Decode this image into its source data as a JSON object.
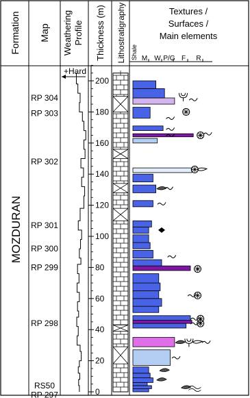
{
  "headers": {
    "formation": "Formation",
    "map": "Map",
    "weathering_line1": "Weathering",
    "weathering_line2": "Profile",
    "thickness": "Thickness (m)",
    "litho": "Lithostratigraphy",
    "textures_line1": "Textures /",
    "textures_line2": "Surfaces /",
    "textures_line3": "Main elements",
    "grain_scale": [
      "Shale",
      "M",
      "W",
      "P/G",
      "F",
      "R"
    ]
  },
  "formation_name": "MOZDURAN",
  "hard_label": "+Hard",
  "thickness_scale": {
    "min": 0,
    "max": 210,
    "ticks": [
      0,
      20,
      40,
      60,
      80,
      100,
      120,
      140,
      160,
      180,
      200
    ]
  },
  "map_labels": [
    {
      "label": "RP 304",
      "level": 189
    },
    {
      "label": "RP 303",
      "level": 179
    },
    {
      "label": "RP 302",
      "level": 148
    },
    {
      "label": "RP 301",
      "level": 107
    },
    {
      "label": "RP 300",
      "level": 92
    },
    {
      "label": "RP 299",
      "level": 80
    },
    {
      "label": "RP 298",
      "level": 44
    },
    {
      "label": "RS50",
      "level": 4
    },
    {
      "label": "RP 297",
      "level": -2
    }
  ],
  "colors": {
    "blue": "#4863e6",
    "light_blue": "#b4cdf2",
    "pale_blue": "#e2ecfb",
    "lilac": "#d4b4ec",
    "purple": "#7c18a4",
    "magenta": "#e06ee8"
  },
  "beds": [
    {
      "from": 0,
      "to": 2,
      "grain": 1.1,
      "color": "blue"
    },
    {
      "from": 2,
      "to": 4,
      "grain": 1.3,
      "color": "blue"
    },
    {
      "from": 4,
      "to": 6,
      "grain": 1.0,
      "color": "blue"
    },
    {
      "from": 6,
      "to": 9,
      "grain": 1.4,
      "color": "blue"
    },
    {
      "from": 9,
      "to": 12,
      "grain": 1.2,
      "color": "blue"
    },
    {
      "from": 12,
      "to": 16,
      "grain": 1.1,
      "color": "blue"
    },
    {
      "from": 17,
      "to": 27,
      "grain": 2.6,
      "color": "light_blue"
    },
    {
      "from": 29,
      "to": 35,
      "grain": 2.9,
      "color": "magenta"
    },
    {
      "from": 41,
      "to": 44,
      "grain": 3.7,
      "color": "blue"
    },
    {
      "from": 44,
      "to": 46,
      "grain": 4.1,
      "color": "purple"
    },
    {
      "from": 46,
      "to": 49,
      "grain": 4.0,
      "color": "blue"
    },
    {
      "from": 51,
      "to": 55,
      "grain": 1.8,
      "color": "blue"
    },
    {
      "from": 55,
      "to": 60,
      "grain": 2.0,
      "color": "blue"
    },
    {
      "from": 60,
      "to": 65,
      "grain": 1.8,
      "color": "blue"
    },
    {
      "from": 65,
      "to": 70,
      "grain": 1.9,
      "color": "blue"
    },
    {
      "from": 70,
      "to": 76,
      "grain": 1.8,
      "color": "blue"
    },
    {
      "from": 78,
      "to": 81,
      "grain": 4.0,
      "color": "purple"
    },
    {
      "from": 81,
      "to": 85,
      "grain": 2.0,
      "color": "blue"
    },
    {
      "from": 86,
      "to": 91,
      "grain": 1.4,
      "color": "blue"
    },
    {
      "from": 92,
      "to": 96,
      "grain": 1.2,
      "color": "blue"
    },
    {
      "from": 96,
      "to": 101,
      "grain": 1.1,
      "color": "blue"
    },
    {
      "from": 102,
      "to": 106,
      "grain": 1.1,
      "color": "blue"
    },
    {
      "from": 106,
      "to": 110,
      "grain": 1.3,
      "color": "blue"
    },
    {
      "from": 119,
      "to": 123,
      "grain": 1.4,
      "color": "blue"
    },
    {
      "from": 128,
      "to": 133,
      "grain": 1.6,
      "color": "blue"
    },
    {
      "from": 135,
      "to": 140,
      "grain": 1.4,
      "color": "blue"
    },
    {
      "from": 141,
      "to": 144,
      "grain": 4.1,
      "color": "pale_blue"
    },
    {
      "from": 160,
      "to": 163,
      "grain": 1.7,
      "color": "light_blue"
    },
    {
      "from": 164,
      "to": 166,
      "grain": 4.2,
      "color": "purple"
    },
    {
      "from": 168,
      "to": 171,
      "grain": 2.1,
      "color": "blue"
    },
    {
      "from": 176,
      "to": 183,
      "grain": 1.2,
      "color": "blue"
    },
    {
      "from": 185,
      "to": 189,
      "grain": 2.9,
      "color": "lilac"
    },
    {
      "from": 189,
      "to": 195,
      "grain": 2.2,
      "color": "blue"
    },
    {
      "from": 195,
      "to": 200,
      "grain": 1.6,
      "color": "blue"
    }
  ],
  "litho_cross_intervals": [
    [
      18,
      29
    ],
    [
      39,
      43
    ],
    [
      110,
      118
    ],
    [
      128,
      134
    ],
    [
      150,
      156
    ],
    [
      180,
      190
    ]
  ],
  "weathering_profile": [
    {
      "level": 0,
      "hardness": 1.8
    },
    {
      "level": 4,
      "hardness": 1.6
    },
    {
      "level": 8,
      "hardness": 1.9
    },
    {
      "level": 12,
      "hardness": 1.5
    },
    {
      "level": 16,
      "hardness": 1.8
    },
    {
      "level": 20,
      "hardness": 2.3
    },
    {
      "level": 26,
      "hardness": 2.0
    },
    {
      "level": 30,
      "hardness": 1.2
    },
    {
      "level": 36,
      "hardness": 1.5
    },
    {
      "level": 42,
      "hardness": 1.1
    },
    {
      "level": 48,
      "hardness": 1.6
    },
    {
      "level": 52,
      "hardness": 1.3
    },
    {
      "level": 58,
      "hardness": 1.8
    },
    {
      "level": 64,
      "hardness": 1.2
    },
    {
      "level": 70,
      "hardness": 1.7
    },
    {
      "level": 76,
      "hardness": 1.3
    },
    {
      "level": 82,
      "hardness": 2.2
    },
    {
      "level": 86,
      "hardness": 1.8
    },
    {
      "level": 92,
      "hardness": 2.1
    },
    {
      "level": 98,
      "hardness": 2.4
    },
    {
      "level": 104,
      "hardness": 1.5
    },
    {
      "level": 110,
      "hardness": 2.0
    },
    {
      "level": 118,
      "hardness": 3.0
    },
    {
      "level": 126,
      "hardness": 3.2
    },
    {
      "level": 132,
      "hardness": 2.4
    },
    {
      "level": 138,
      "hardness": 2.9
    },
    {
      "level": 144,
      "hardness": 2.2
    },
    {
      "level": 150,
      "hardness": 3.3
    },
    {
      "level": 156,
      "hardness": 3.0
    },
    {
      "level": 162,
      "hardness": 3.5
    },
    {
      "level": 168,
      "hardness": 3.0
    },
    {
      "level": 174,
      "hardness": 2.6
    },
    {
      "level": 180,
      "hardness": 1.8
    },
    {
      "level": 186,
      "hardness": 2.0
    },
    {
      "level": 192,
      "hardness": 1.4
    },
    {
      "level": 198,
      "hardness": 1.0
    },
    {
      "level": 205,
      "hardness": 1.2
    }
  ],
  "symbols": [
    {
      "type": "oyster",
      "level": 3,
      "grain": 3.7
    },
    {
      "type": "wave",
      "level": 2,
      "grain": 4.3
    },
    {
      "type": "oyster",
      "level": 8,
      "grain": 2.0
    },
    {
      "type": "oyster",
      "level": 14,
      "grain": 2.2
    },
    {
      "type": "bioturbation",
      "level": 22,
      "grain": 3.0
    },
    {
      "type": "oyster",
      "level": 32,
      "grain": 3.3
    },
    {
      "type": "crinoid",
      "level": 32,
      "grain": 3.9
    },
    {
      "type": "belemnite",
      "level": 32,
      "grain": 4.5
    },
    {
      "type": "bioturbation",
      "level": 32,
      "grain": 5.1
    },
    {
      "type": "bioturbation",
      "level": 47,
      "grain": 4.3
    },
    {
      "type": "rosette",
      "level": 47,
      "grain": 4.7
    },
    {
      "type": "bioturbation",
      "level": 44,
      "grain": 4.3
    },
    {
      "type": "rosette",
      "level": 44,
      "grain": 4.7
    },
    {
      "type": "bioturbation",
      "level": 62,
      "grain": 4.1
    },
    {
      "type": "rosette",
      "level": 62,
      "grain": 4.5
    },
    {
      "type": "rosette",
      "level": 79,
      "grain": 4.5
    },
    {
      "type": "bioturbation",
      "level": 87,
      "grain": 2.7
    },
    {
      "type": "diamond",
      "level": 104,
      "grain": 2.0
    },
    {
      "type": "bioturbation",
      "level": 121,
      "grain": 2.0
    },
    {
      "type": "oyster",
      "level": 131,
      "grain": 2.0
    },
    {
      "type": "bioturbation",
      "level": 131,
      "grain": 2.5
    },
    {
      "type": "rosette",
      "level": 143,
      "grain": 4.3
    },
    {
      "type": "belemnite",
      "level": 143,
      "grain": 4.8
    },
    {
      "type": "bioturbation",
      "level": 165,
      "grain": 2.6
    },
    {
      "type": "rosette",
      "level": 165,
      "grain": 4.7
    },
    {
      "type": "bioturbation",
      "level": 166,
      "grain": 5.2
    },
    {
      "type": "bioturbation",
      "level": 169,
      "grain": 2.6
    },
    {
      "type": "bioturbation",
      "level": 176,
      "grain": 2.6
    },
    {
      "type": "rosette",
      "level": 180,
      "grain": 3.7
    },
    {
      "type": "crinoid",
      "level": 190,
      "grain": 3.5
    },
    {
      "type": "bioturbation",
      "level": 188,
      "grain": 4.2
    }
  ]
}
